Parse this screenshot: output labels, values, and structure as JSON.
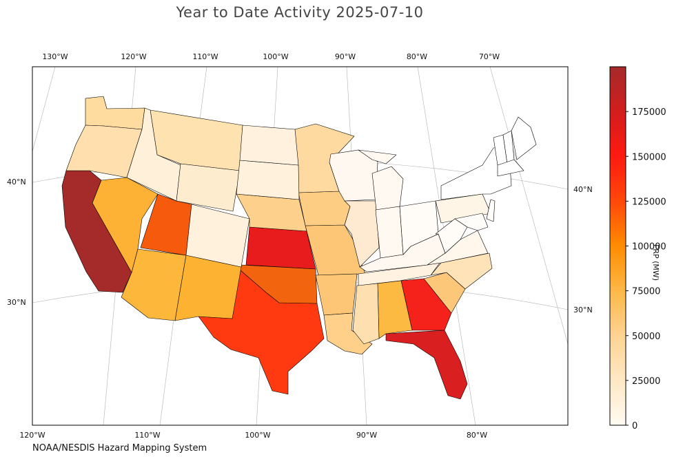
{
  "title": "Year to Date Activity 2025-07-10",
  "credit": "NOAA/NESDIS Hazard Mapping System",
  "colorbar": {
    "label": "FRP (MW)",
    "min": 0,
    "max": 200000,
    "ticks": [
      "0",
      "25000",
      "50000",
      "75000",
      "100000",
      "125000",
      "150000",
      "175000"
    ],
    "tick_values": [
      0,
      25000,
      50000,
      75000,
      100000,
      125000,
      150000,
      175000
    ],
    "colormap": "YlOrRd-like"
  },
  "axes": {
    "top_lon_labels": [
      "130°W",
      "120°W",
      "110°W",
      "100°W",
      "90°W",
      "80°W",
      "70°W"
    ],
    "bottom_lon_labels": [
      "120°W",
      "110°W",
      "100°W",
      "90°W",
      "80°W"
    ],
    "left_lat_labels": [
      "40°N",
      "30°N"
    ],
    "right_lat_labels": [
      "40°N",
      "30°N"
    ]
  },
  "chart_data": {
    "type": "choropleth",
    "value_unit": "FRP (MW)",
    "regions": [
      {
        "name": "California",
        "value": 200000,
        "color": "#a52a2a"
      },
      {
        "name": "Georgia",
        "value": 140000,
        "color": "#f4221a"
      },
      {
        "name": "Florida",
        "value": 160000,
        "color": "#d91f1f"
      },
      {
        "name": "Kansas",
        "value": 145000,
        "color": "#e81c1c"
      },
      {
        "name": "Texas",
        "value": 115000,
        "color": "#ff3a10"
      },
      {
        "name": "Utah",
        "value": 95000,
        "color": "#f55a0d"
      },
      {
        "name": "Oklahoma",
        "value": 90000,
        "color": "#f2650e"
      },
      {
        "name": "Nevada",
        "value": 55000,
        "color": "#fdb135"
      },
      {
        "name": "Arizona",
        "value": 50000,
        "color": "#fdb73a"
      },
      {
        "name": "New Mexico",
        "value": 52000,
        "color": "#fdb232"
      },
      {
        "name": "Alabama",
        "value": 48000,
        "color": "#fdba43"
      },
      {
        "name": "Missouri",
        "value": 35000,
        "color": "#fdc676"
      },
      {
        "name": "Arkansas",
        "value": 35000,
        "color": "#fdc676"
      },
      {
        "name": "Louisiana",
        "value": 30000,
        "color": "#fed08a"
      },
      {
        "name": "South Carolina",
        "value": 32000,
        "color": "#fdc77a"
      },
      {
        "name": "Iowa",
        "value": 30000,
        "color": "#fdcd84"
      },
      {
        "name": "Nebraska",
        "value": 28000,
        "color": "#fdd08c"
      },
      {
        "name": "Minnesota",
        "value": 24000,
        "color": "#fed9a0"
      },
      {
        "name": "Washington",
        "value": 22000,
        "color": "#fedb9f"
      },
      {
        "name": "Oregon",
        "value": 20000,
        "color": "#fedfad"
      },
      {
        "name": "Montana",
        "value": 18000,
        "color": "#fee2b0"
      },
      {
        "name": "Mississippi",
        "value": 20000,
        "color": "#fee0b0"
      },
      {
        "name": "North Carolina",
        "value": 18000,
        "color": "#fee3b8"
      },
      {
        "name": "Illinois",
        "value": 12000,
        "color": "#feead0"
      },
      {
        "name": "Idaho",
        "value": 9000,
        "color": "#fff0da"
      },
      {
        "name": "Wyoming",
        "value": 10000,
        "color": "#feeccf"
      },
      {
        "name": "Colorado",
        "value": 8000,
        "color": "#fff1dc"
      },
      {
        "name": "South Dakota",
        "value": 8000,
        "color": "#fff1dc"
      },
      {
        "name": "North Dakota",
        "value": 7000,
        "color": "#fff1de"
      },
      {
        "name": "Tennessee",
        "value": 7000,
        "color": "#fff2e0"
      },
      {
        "name": "Wisconsin",
        "value": 3000,
        "color": "#fff8f0"
      },
      {
        "name": "Michigan",
        "value": 3000,
        "color": "#fff9f2"
      },
      {
        "name": "Indiana",
        "value": 3000,
        "color": "#fff9f2"
      },
      {
        "name": "Kentucky",
        "value": 3000,
        "color": "#fff8f0"
      },
      {
        "name": "Virginia",
        "value": 4000,
        "color": "#fff7ec"
      },
      {
        "name": "Pennsylvania",
        "value": 5000,
        "color": "#fff5e6"
      },
      {
        "name": "Ohio",
        "value": 1500,
        "color": "#fffcf8"
      },
      {
        "name": "West Virginia",
        "value": 1500,
        "color": "#fffcf8"
      },
      {
        "name": "New York",
        "value": 0,
        "color": "#ffffff"
      },
      {
        "name": "Maine",
        "value": 0,
        "color": "#ffffff"
      },
      {
        "name": "Vermont",
        "value": 0,
        "color": "#ffffff"
      },
      {
        "name": "New Hampshire",
        "value": 0,
        "color": "#ffffff"
      },
      {
        "name": "Massachusetts",
        "value": 0,
        "color": "#ffffff"
      },
      {
        "name": "New Jersey",
        "value": 500,
        "color": "#fffdfa"
      },
      {
        "name": "Maryland",
        "value": 500,
        "color": "#fffdfa"
      }
    ]
  }
}
